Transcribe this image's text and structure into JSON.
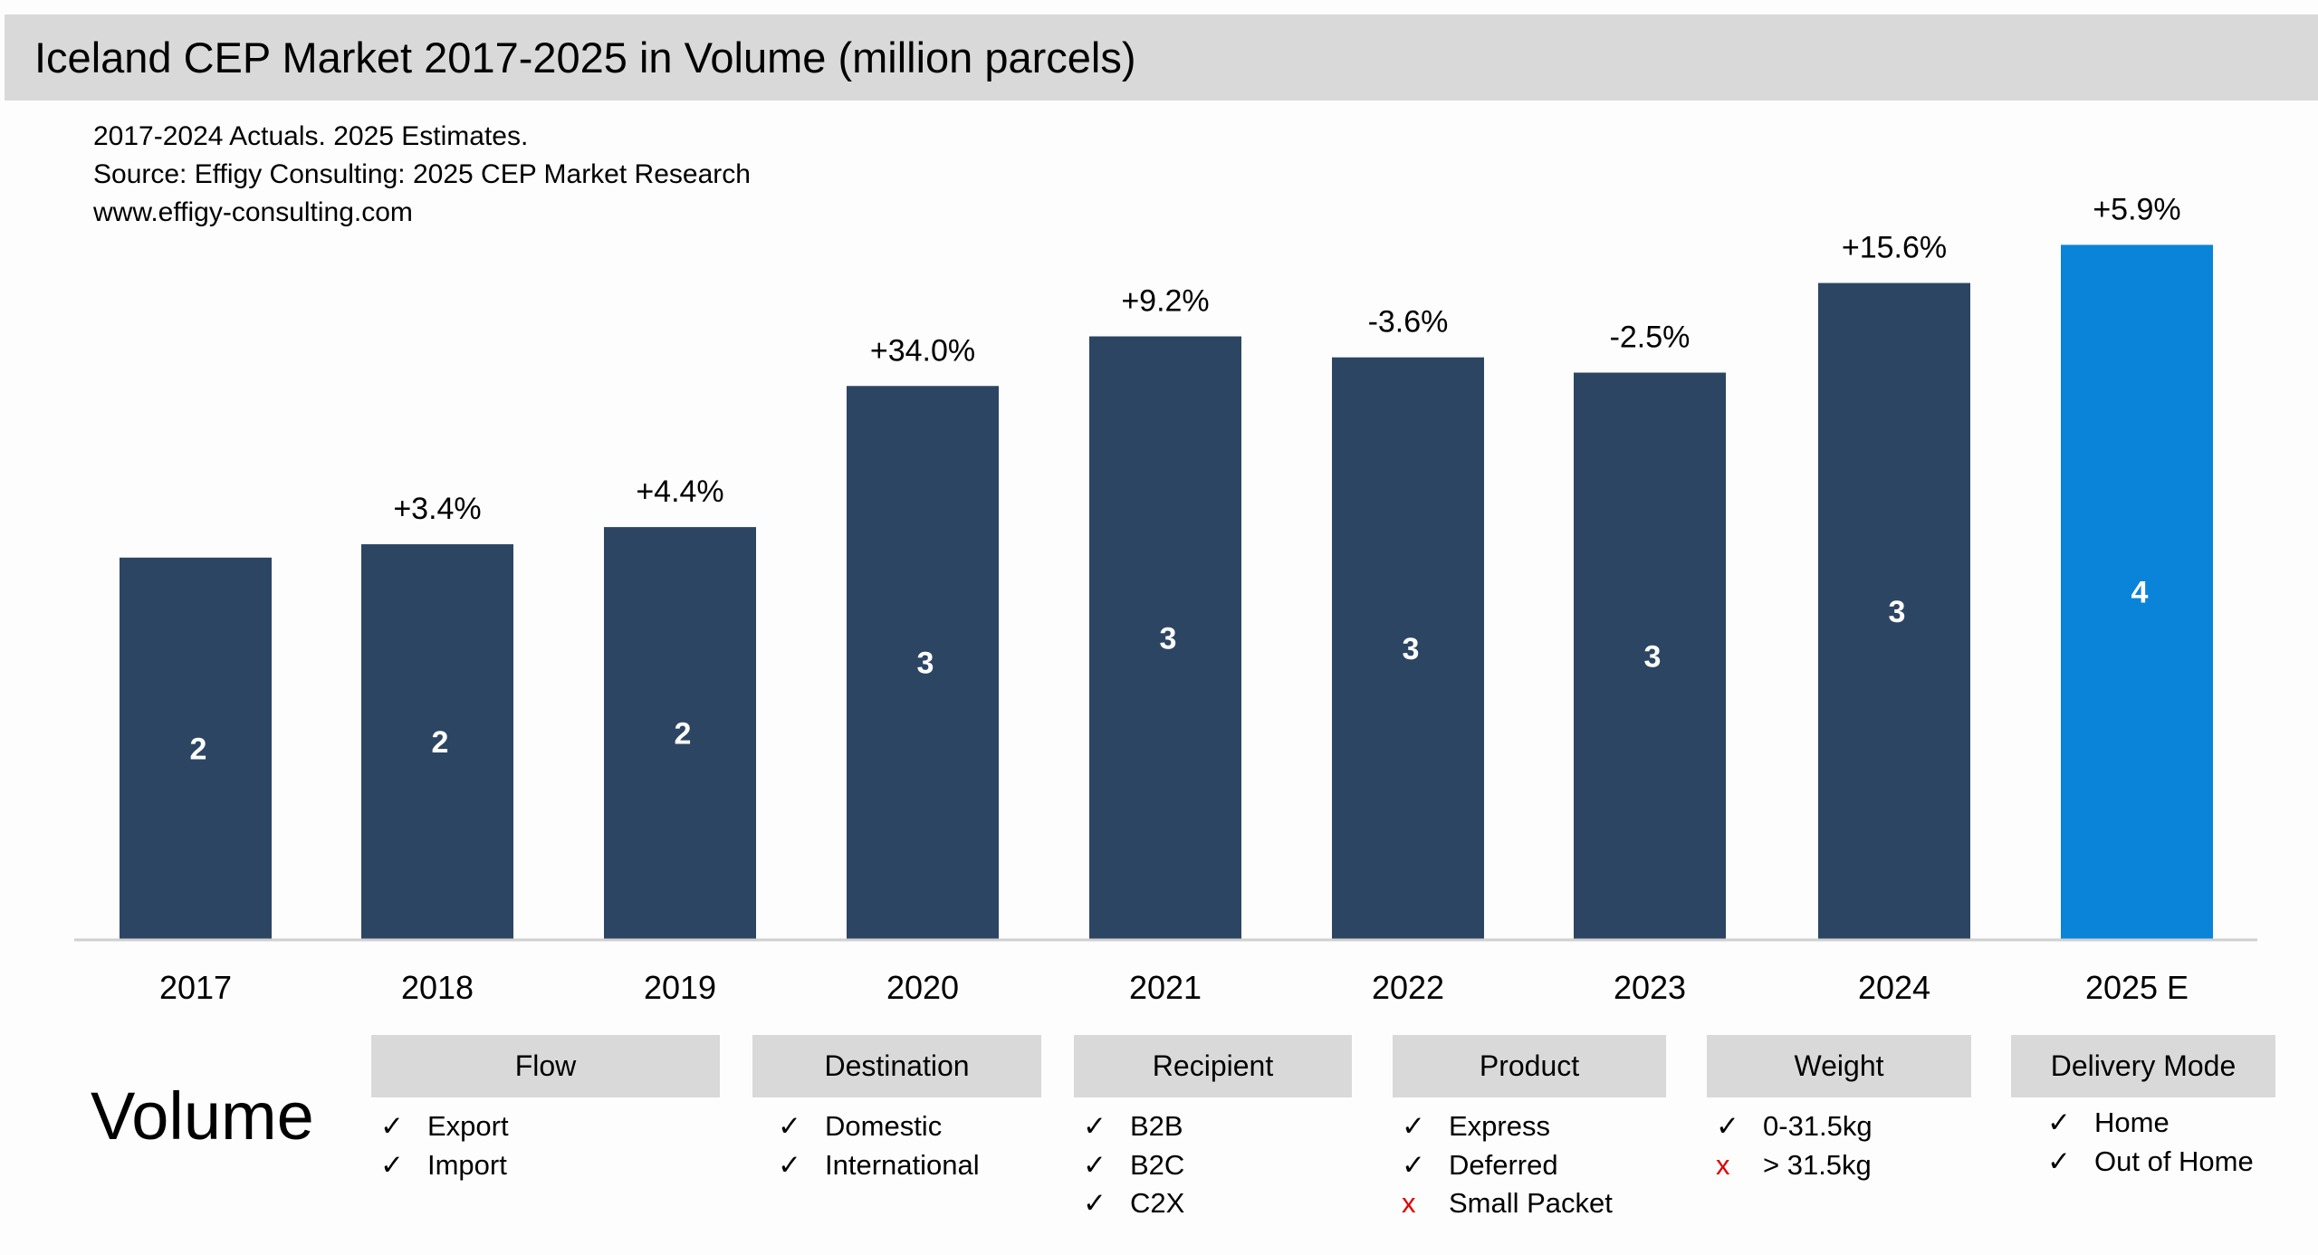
{
  "header": {
    "title": "Iceland CEP Market 2017-2025 in Volume (million parcels)",
    "notes": [
      "2017-2024 Actuals. 2025 Estimates.",
      "Source: Effigy Consulting: 2025 CEP Market Research",
      "www.effigy-consulting.com"
    ]
  },
  "chart_data": {
    "type": "bar",
    "title": "Iceland CEP Market 2017-2025 in Volume (million parcels)",
    "categories": [
      "2017",
      "2018",
      "2019",
      "2020",
      "2021",
      "2022",
      "2023",
      "2024",
      "2025 E"
    ],
    "values": [
      2.0,
      2.07,
      2.16,
      2.9,
      3.16,
      3.05,
      2.97,
      3.44,
      3.64
    ],
    "data_labels": [
      "2",
      "2",
      "2",
      "3",
      "3",
      "3",
      "3",
      "3",
      "4"
    ],
    "growth_labels": [
      "",
      "+3.4%",
      "+4.4%",
      "+34.0%",
      "+9.2%",
      "-3.6%",
      "-2.5%",
      "+15.6%",
      "+5.9%"
    ],
    "xlabel": "",
    "ylabel": "",
    "grid": false,
    "colors": {
      "actual": "#2c4563",
      "estimate": "#0a84d9"
    }
  },
  "segments": {
    "label": "Volume",
    "groups": [
      {
        "title": "Flow",
        "items": [
          {
            "text": "Export",
            "included": true
          },
          {
            "text": "Import",
            "included": true
          }
        ]
      },
      {
        "title": "Destination",
        "items": [
          {
            "text": "Domestic",
            "included": true
          },
          {
            "text": "International",
            "included": true
          }
        ]
      },
      {
        "title": "Recipient",
        "items": [
          {
            "text": "B2B",
            "included": true
          },
          {
            "text": "B2C",
            "included": true
          },
          {
            "text": "C2X",
            "included": true
          }
        ]
      },
      {
        "title": "Product",
        "items": [
          {
            "text": "Express",
            "included": true
          },
          {
            "text": "Deferred",
            "included": true
          },
          {
            "text": "Small Packet",
            "included": false
          }
        ]
      },
      {
        "title": "Weight",
        "items": [
          {
            "text": "0-31.5kg",
            "included": true
          },
          {
            "text": "> 31.5kg",
            "included": false
          }
        ]
      },
      {
        "title": "Delivery Mode",
        "items": [
          {
            "text": "Home",
            "included": true
          },
          {
            "text": "Out of Home",
            "included": true
          }
        ]
      }
    ],
    "check_symbol": "✓",
    "cross_symbol": "x"
  }
}
